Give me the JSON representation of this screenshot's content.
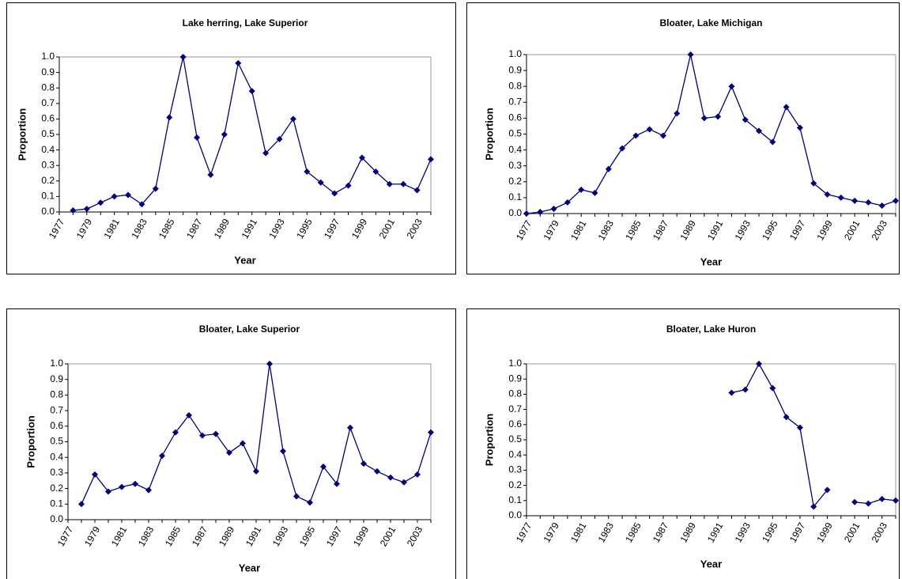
{
  "chart_data": [
    {
      "type": "line",
      "title": "Lake herring, Lake Superior",
      "x_label": "Year",
      "y_label": "Proportion",
      "color": "#000080",
      "categories": [
        "1977",
        null,
        "1979",
        null,
        "1981",
        null,
        "1983",
        null,
        "1985",
        null,
        "1987",
        null,
        "1989",
        null,
        "1991",
        null,
        "1993",
        null,
        "1995",
        null,
        "1997",
        null,
        "1999",
        null,
        "2001",
        null,
        "2003",
        null
      ],
      "values": [
        null,
        0.01,
        0.02,
        0.06,
        0.1,
        0.11,
        0.05,
        0.15,
        0.61,
        1.0,
        0.48,
        0.24,
        0.5,
        0.96,
        0.78,
        0.38,
        0.47,
        0.6,
        0.26,
        0.19,
        0.12,
        0.17,
        0.35,
        0.26,
        0.18,
        0.18,
        0.14,
        0.34
      ],
      "ylim": [
        0,
        1
      ],
      "yticks": [
        {
          "value": 0,
          "label": "0.0"
        },
        0.1,
        0.2,
        0.3,
        0.4,
        0.5,
        0.6,
        0.7,
        0.8,
        0.9,
        {
          "value": 1,
          "label": "1.0"
        }
      ]
    },
    {
      "type": "line",
      "title": "Bloater,  Lake Michigan",
      "x_label": "Year",
      "y_label": "Proportion",
      "color": "#000080",
      "categories": [
        "1977",
        null,
        "1979",
        null,
        "1981",
        null,
        "1983",
        null,
        "1985",
        null,
        "1987",
        null,
        "1989",
        null,
        "1991",
        null,
        "1993",
        null,
        "1995",
        null,
        "1997",
        null,
        "1999",
        null,
        "2001",
        null,
        "2003",
        null
      ],
      "values": [
        0.0,
        0.01,
        0.03,
        0.07,
        0.15,
        0.13,
        0.28,
        0.41,
        0.49,
        0.53,
        0.49,
        0.63,
        1.0,
        0.6,
        0.61,
        0.8,
        0.59,
        0.52,
        0.45,
        0.67,
        0.54,
        0.19,
        0.12,
        0.1,
        0.08,
        0.07,
        0.05,
        0.08
      ],
      "ylim": [
        0,
        1
      ],
      "yticks": [
        {
          "value": 0,
          "label": "0.0"
        },
        0.1,
        0.2,
        0.3,
        0.4,
        0.5,
        0.6,
        0.7,
        0.8,
        0.9,
        {
          "value": 1,
          "label": "1.0"
        }
      ]
    },
    {
      "type": "line",
      "title": "Bloater, Lake Superior",
      "x_label": "Year",
      "y_label": "Proportion",
      "color": "#000080",
      "categories": [
        "1977",
        null,
        "1979",
        null,
        "1981",
        null,
        "1983",
        null,
        "1985",
        null,
        "1987",
        null,
        "1989",
        null,
        "1991",
        null,
        "1993",
        null,
        "1995",
        null,
        "1997",
        null,
        "1999",
        null,
        "2001",
        null,
        "2003",
        null
      ],
      "values": [
        null,
        0.1,
        0.29,
        0.18,
        0.21,
        0.23,
        0.19,
        0.41,
        0.56,
        0.67,
        0.54,
        0.55,
        0.43,
        0.49,
        0.31,
        1.0,
        0.44,
        0.15,
        0.11,
        0.34,
        0.23,
        0.59,
        0.36,
        0.31,
        0.27,
        0.24,
        0.29,
        0.56
      ],
      "ylim": [
        0,
        1
      ],
      "yticks": [
        {
          "value": 0,
          "label": "0.0"
        },
        0.1,
        0.2,
        0.3,
        0.4,
        0.5,
        0.6,
        0.7,
        0.8,
        0.9,
        {
          "value": 1,
          "label": "1.0"
        }
      ]
    },
    {
      "type": "line",
      "title": "Bloater, Lake Huron",
      "x_label": "Year",
      "y_label": "Proportion",
      "color": "#000080",
      "categories": [
        "1977",
        null,
        "1979",
        null,
        "1981",
        null,
        "1983",
        null,
        "1985",
        null,
        "1987",
        null,
        "1989",
        null,
        "1991",
        null,
        "1993",
        null,
        "1995",
        null,
        "1997",
        null,
        "1999",
        null,
        "2001",
        null,
        "2003",
        null
      ],
      "values": [
        null,
        null,
        null,
        null,
        null,
        null,
        null,
        null,
        null,
        null,
        null,
        null,
        null,
        null,
        null,
        0.81,
        0.83,
        1.0,
        0.84,
        0.65,
        0.58,
        0.06,
        0.17,
        null,
        0.09,
        0.08,
        0.11,
        0.1
      ],
      "ylim": [
        0,
        1
      ],
      "yticks": [
        {
          "value": 0,
          "label": "0.0"
        },
        0.1,
        0.2,
        0.3,
        0.4,
        0.5,
        0.6,
        0.7,
        0.8,
        0.9,
        {
          "value": 1,
          "label": "1.0"
        }
      ]
    }
  ]
}
